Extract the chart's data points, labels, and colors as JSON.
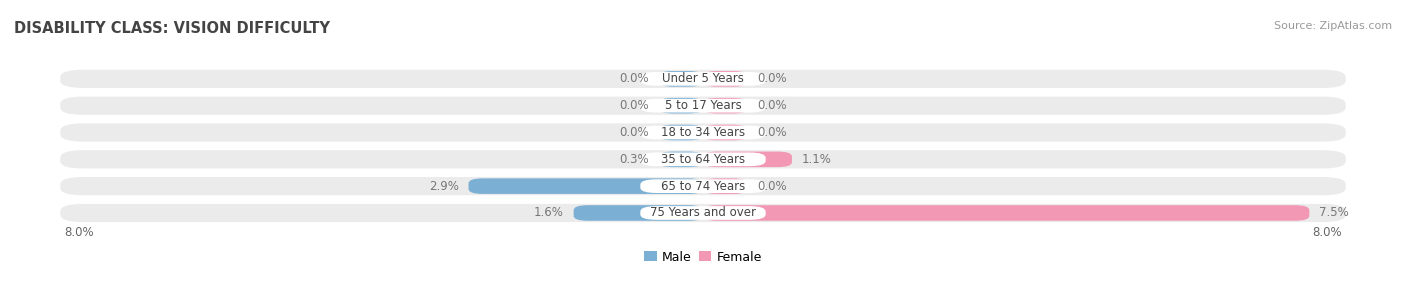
{
  "title": "DISABILITY CLASS: VISION DIFFICULTY",
  "source": "Source: ZipAtlas.com",
  "categories": [
    "Under 5 Years",
    "5 to 17 Years",
    "18 to 34 Years",
    "35 to 64 Years",
    "65 to 74 Years",
    "75 Years and over"
  ],
  "male_values": [
    0.0,
    0.0,
    0.0,
    0.3,
    2.9,
    1.6
  ],
  "female_values": [
    0.0,
    0.0,
    0.0,
    1.1,
    0.0,
    7.5
  ],
  "male_color": "#7bafd4",
  "female_color": "#f298b4",
  "row_bg_color": "#ebebeb",
  "label_bg_color": "#ffffff",
  "xlim": 8.0,
  "min_bar_val": 0.55,
  "title_fontsize": 10.5,
  "cat_fontsize": 8.5,
  "val_fontsize": 8.5,
  "source_fontsize": 8,
  "legend_fontsize": 9
}
